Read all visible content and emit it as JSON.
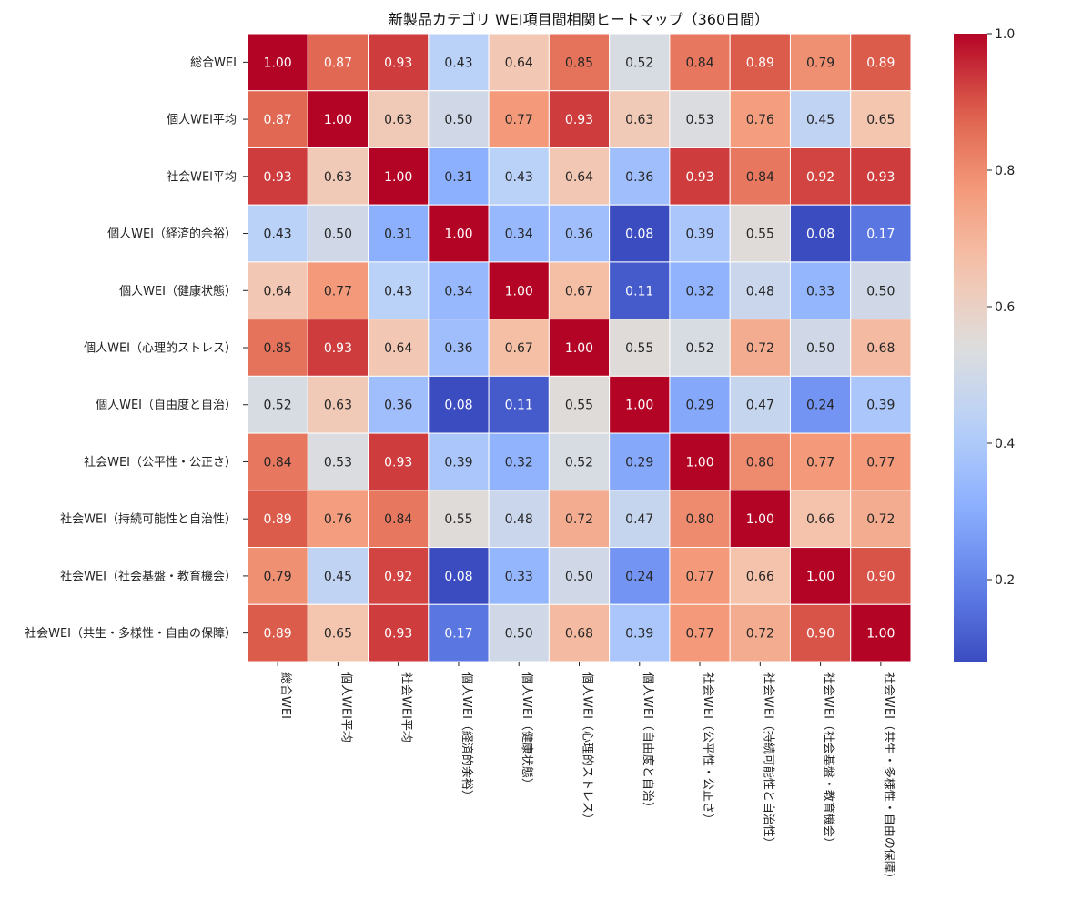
{
  "chart_data": {
    "type": "heatmap",
    "title": "新製品カテゴリ WEI項目間相関ヒートマップ（360日間）",
    "labels": [
      "総合WEI",
      "個人WEI平均",
      "社会WEI平均",
      "個人WEI（経済的余裕）",
      "個人WEI（健康状態）",
      "個人WEI（心理的ストレス）",
      "個人WEI（自由度と自治）",
      "社会WEI（公平性・公正さ）",
      "社会WEI（持続可能性と自治性）",
      "社会WEI（社会基盤・教育機会）",
      "社会WEI（共生・多様性・自由の保障）"
    ],
    "values": [
      [
        1.0,
        0.87,
        0.93,
        0.43,
        0.64,
        0.85,
        0.52,
        0.84,
        0.89,
        0.79,
        0.89
      ],
      [
        0.87,
        1.0,
        0.63,
        0.5,
        0.77,
        0.93,
        0.63,
        0.53,
        0.76,
        0.45,
        0.65
      ],
      [
        0.93,
        0.63,
        1.0,
        0.31,
        0.43,
        0.64,
        0.36,
        0.93,
        0.84,
        0.92,
        0.93
      ],
      [
        0.43,
        0.5,
        0.31,
        1.0,
        0.34,
        0.36,
        0.08,
        0.39,
        0.55,
        0.08,
        0.17
      ],
      [
        0.64,
        0.77,
        0.43,
        0.34,
        1.0,
        0.67,
        0.11,
        0.32,
        0.48,
        0.33,
        0.5
      ],
      [
        0.85,
        0.93,
        0.64,
        0.36,
        0.67,
        1.0,
        0.55,
        0.52,
        0.72,
        0.5,
        0.68
      ],
      [
        0.52,
        0.63,
        0.36,
        0.08,
        0.11,
        0.55,
        1.0,
        0.29,
        0.47,
        0.24,
        0.39
      ],
      [
        0.84,
        0.53,
        0.93,
        0.39,
        0.32,
        0.52,
        0.29,
        1.0,
        0.8,
        0.77,
        0.77
      ],
      [
        0.89,
        0.76,
        0.84,
        0.55,
        0.48,
        0.72,
        0.47,
        0.8,
        1.0,
        0.66,
        0.72
      ],
      [
        0.79,
        0.45,
        0.92,
        0.08,
        0.33,
        0.5,
        0.24,
        0.77,
        0.66,
        1.0,
        0.9
      ],
      [
        0.89,
        0.65,
        0.93,
        0.17,
        0.5,
        0.68,
        0.39,
        0.77,
        0.72,
        0.9,
        1.0
      ]
    ],
    "value_format": "0.00",
    "colormap": "coolwarm",
    "vmin": 0.08,
    "vmax": 1.0,
    "colorbar": {
      "ticks": [
        0.2,
        0.4,
        0.6,
        0.8,
        1.0
      ],
      "tick_labels": [
        "0.2",
        "0.4",
        "0.6",
        "0.8",
        "1.0"
      ],
      "placement": "right"
    }
  }
}
